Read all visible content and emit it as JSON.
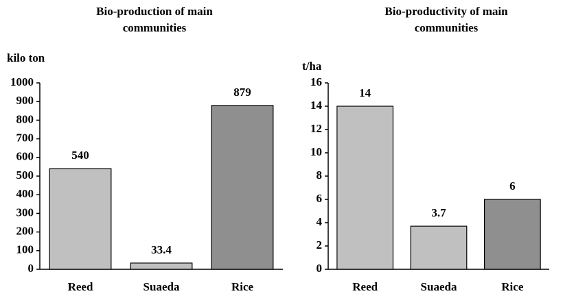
{
  "chart_data": [
    {
      "type": "bar",
      "title": [
        "Bio-production of main",
        "communities"
      ],
      "y_label": "kilo ton",
      "categories": [
        "Reed",
        "Suaeda",
        "Rice"
      ],
      "values": [
        540,
        33.4,
        879
      ],
      "colors": [
        "#c0c0c0",
        "#c0c0c0",
        "#8f8f8f"
      ],
      "ylim": [
        0,
        1000
      ],
      "yticks": [
        0,
        100,
        200,
        300,
        400,
        500,
        600,
        700,
        800,
        900,
        1000
      ],
      "grid": false
    },
    {
      "type": "bar",
      "title": [
        "Bio-productivity of main",
        "communities"
      ],
      "y_label": "t/ha",
      "categories": [
        "Reed",
        "Suaeda",
        "Rice"
      ],
      "values": [
        14,
        3.7,
        6
      ],
      "colors": [
        "#c0c0c0",
        "#c0c0c0",
        "#8f8f8f"
      ],
      "ylim": [
        0,
        16
      ],
      "yticks": [
        0,
        2,
        4,
        6,
        8,
        10,
        12,
        14,
        16
      ],
      "grid": false
    }
  ]
}
